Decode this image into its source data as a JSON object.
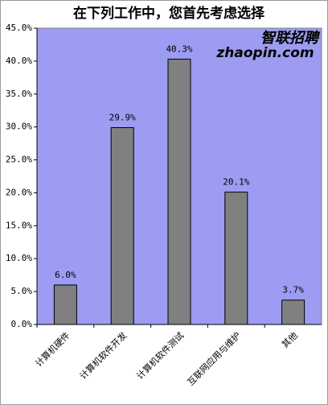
{
  "chart_data": {
    "type": "bar",
    "title": "在下列工作中，您首先考虑选择",
    "watermark": [
      "智联招聘",
      "zhaopin.com"
    ],
    "categories": [
      "计算机硬件",
      "计算机软件开发",
      "计算机软件测试",
      "互联网应用与维护",
      "其他"
    ],
    "values": [
      6.0,
      29.9,
      40.3,
      20.1,
      3.7
    ],
    "value_labels": [
      "6.0%",
      "29.9%",
      "40.3%",
      "20.1%",
      "3.7%"
    ],
    "color": "#808080",
    "ylim": [
      0,
      45
    ],
    "yticks": [
      {
        "value": 0,
        "label": "0.0%"
      },
      {
        "value": 5,
        "label": "5.0%"
      },
      {
        "value": 10,
        "label": "10.0%"
      },
      {
        "value": 15,
        "label": "15.0%"
      },
      {
        "value": 20,
        "label": "20.0%"
      },
      {
        "value": 25,
        "label": "25.0%"
      },
      {
        "value": 30,
        "label": "30.0%"
      },
      {
        "value": 35,
        "label": "35.0%"
      },
      {
        "value": 40,
        "label": "40.0%"
      },
      {
        "value": 45,
        "label": "45.0%"
      }
    ]
  }
}
